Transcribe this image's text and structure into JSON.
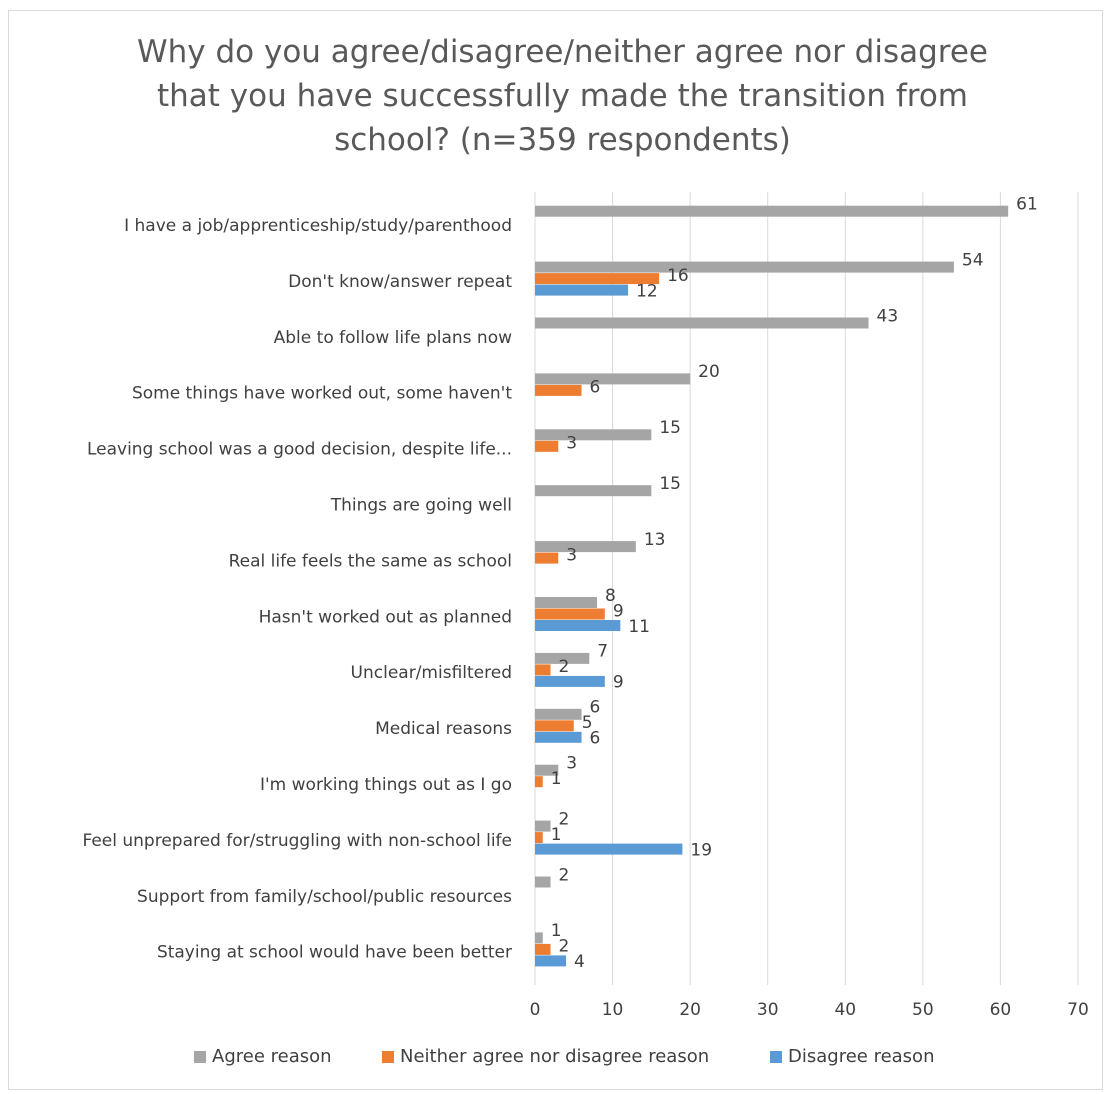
{
  "chart_data": {
    "type": "bar",
    "orientation": "horizontal",
    "title_lines": [
      "Why do you agree/disagree/neither agree nor disagree",
      "that you have successfully made the transition from",
      "school? (n=359 respondents)"
    ],
    "categories": [
      "I have a job/apprenticeship/study/parenthood",
      "Don't know/answer repeat",
      "Able to follow life plans now",
      "Some things have worked out, some haven't",
      "Leaving school was a good decision, despite life...",
      "Things are going well",
      "Real life feels the same as school",
      "Hasn't worked out as planned",
      "Unclear/misfiltered",
      "Medical reasons",
      "I'm working things out as I go",
      "Feel unprepared for/struggling with non-school life",
      "Support from family/school/public resources",
      "Staying at school would have been better"
    ],
    "series": [
      {
        "name": "Agree reason",
        "color": "#a5a5a5",
        "values": [
          61,
          54,
          43,
          20,
          15,
          15,
          13,
          8,
          7,
          6,
          3,
          2,
          2,
          1
        ]
      },
      {
        "name": "Neither agree nor disagree reason",
        "color": "#ed7d31",
        "values": [
          null,
          16,
          null,
          6,
          3,
          null,
          3,
          9,
          2,
          5,
          1,
          1,
          null,
          2
        ]
      },
      {
        "name": "Disagree reason",
        "color": "#5b9bd5",
        "values": [
          null,
          12,
          null,
          null,
          null,
          null,
          null,
          11,
          9,
          6,
          null,
          19,
          null,
          4
        ]
      }
    ],
    "xlim": [
      0,
      70
    ],
    "xticks": [
      "0",
      "10",
      "20",
      "30",
      "40",
      "50",
      "60",
      "70"
    ],
    "grid": true,
    "legend_position": "bottom"
  }
}
